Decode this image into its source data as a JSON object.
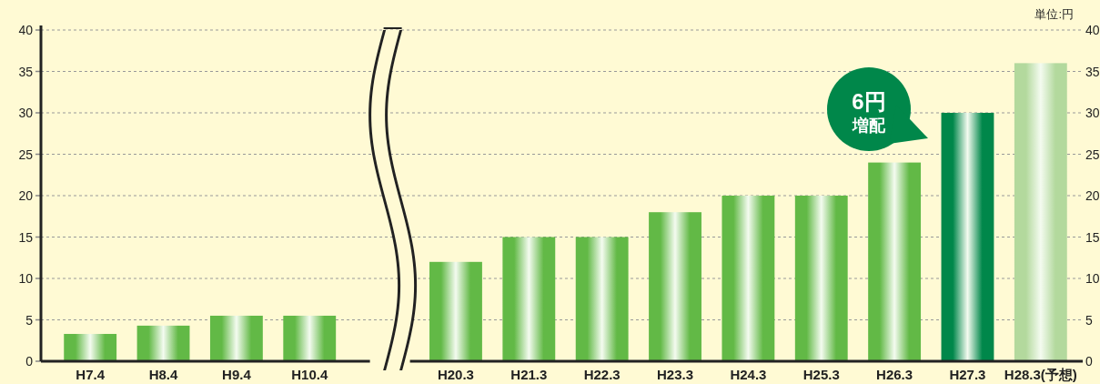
{
  "chart_data": {
    "type": "bar",
    "categories": [
      "H7.4",
      "H8.4",
      "H9.4",
      "H10.4",
      null,
      "H20.3",
      "H21.3",
      "H22.3",
      "H23.3",
      "H24.3",
      "H25.3",
      "H26.3",
      "H27.3",
      "H28.3(予想)"
    ],
    "values": [
      3.3,
      4.3,
      5.5,
      5.5,
      null,
      12,
      15,
      15,
      18,
      20,
      20,
      24,
      30,
      36
    ],
    "colors": [
      "#62b946",
      "#62b946",
      "#62b946",
      "#62b946",
      null,
      "#62b946",
      "#62b946",
      "#62b946",
      "#62b946",
      "#62b946",
      "#62b946",
      "#62b946",
      "#00874a",
      "#b3d99d"
    ],
    "ylim": [
      0,
      40
    ],
    "yticks": [
      0,
      5,
      10,
      15,
      20,
      25,
      30,
      35,
      40
    ],
    "y2lim": [
      0,
      40
    ],
    "y2ticks": [
      0,
      5,
      10,
      15,
      20,
      25,
      30,
      35,
      40
    ],
    "grid": "y",
    "annotations": [
      "単位:円",
      "6円",
      "増配"
    ]
  }
}
